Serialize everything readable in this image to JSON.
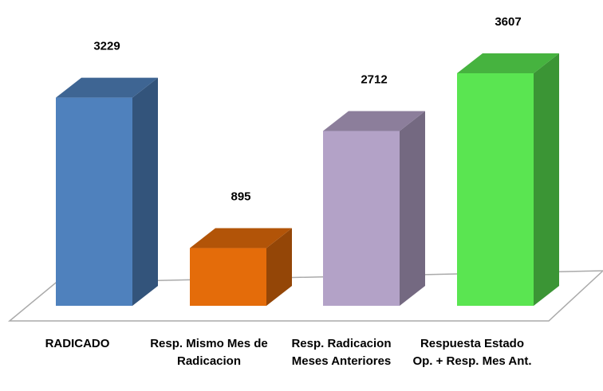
{
  "chart_data": {
    "type": "bar3d",
    "categories": [
      "RADICADO",
      "Resp. Mismo Mes de Radicacion",
      "Resp. Radicacion Meses Anteriores",
      "Respuesta Estado Op. + Resp. Mes Ant."
    ],
    "values": [
      3229,
      895,
      2712,
      3607
    ],
    "colors": [
      "#4f81bd",
      "#e46c0a",
      "#b3a2c7",
      "#5ae551"
    ]
  }
}
